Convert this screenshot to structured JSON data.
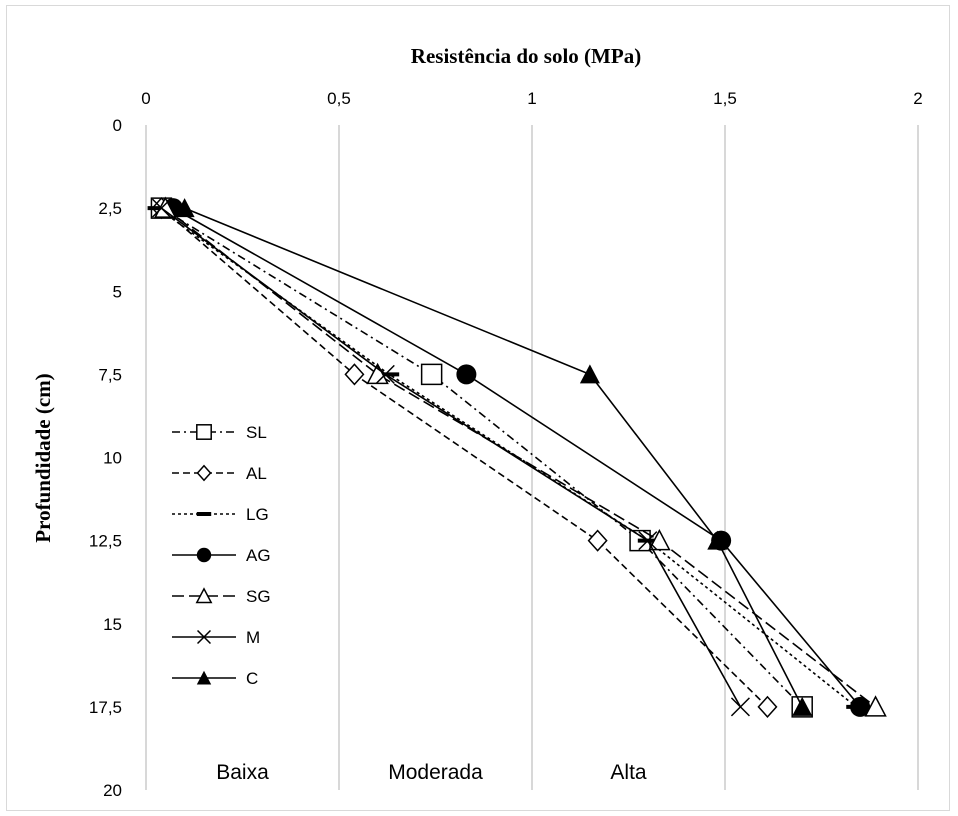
{
  "chart_data": {
    "type": "line",
    "title": "Resistência do solo (MPa)",
    "xlabel": "Resistência do solo (MPa)",
    "ylabel": "Profundidade (cm)",
    "xlim": [
      0,
      2
    ],
    "ylim": [
      0,
      20
    ],
    "y_inverted": true,
    "x_axis_position": "top",
    "x_ticks": [
      "0",
      "0,5",
      "1",
      "1,5",
      "2"
    ],
    "y_ticks": [
      "0",
      "2,5",
      "5",
      "7,5",
      "10",
      "12,5",
      "15",
      "17,5",
      "20"
    ],
    "grid": "vertical",
    "legend_position": "left",
    "zones": [
      {
        "label": "Baixa",
        "x": 0.25
      },
      {
        "label": "Moderada",
        "x": 0.75
      },
      {
        "label": "Alta",
        "x": 1.25
      }
    ],
    "depths": [
      2.5,
      7.5,
      12.5,
      17.5
    ],
    "series": [
      {
        "name": "SL",
        "marker": "square",
        "dash": "dashdot",
        "values": [
          0.04,
          0.74,
          1.28,
          1.7
        ]
      },
      {
        "name": "AL",
        "marker": "diamond",
        "dash": "dashed",
        "values": [
          0.04,
          0.54,
          1.17,
          1.61
        ]
      },
      {
        "name": "LG",
        "marker": "dash",
        "dash": "dotted",
        "values": [
          0.03,
          0.63,
          1.3,
          1.84
        ]
      },
      {
        "name": "AG",
        "marker": "circle",
        "dash": "solid",
        "values": [
          0.07,
          0.83,
          1.49,
          1.85
        ]
      },
      {
        "name": "SG",
        "marker": "triangle-open",
        "dash": "longdash",
        "values": [
          0.05,
          0.6,
          1.33,
          1.89
        ]
      },
      {
        "name": "M",
        "marker": "x",
        "dash": "solid",
        "values": [
          0.04,
          0.62,
          1.3,
          1.54
        ]
      },
      {
        "name": "C",
        "marker": "triangle-filled",
        "dash": "solid",
        "values": [
          0.1,
          1.15,
          1.48,
          1.7
        ]
      }
    ]
  }
}
